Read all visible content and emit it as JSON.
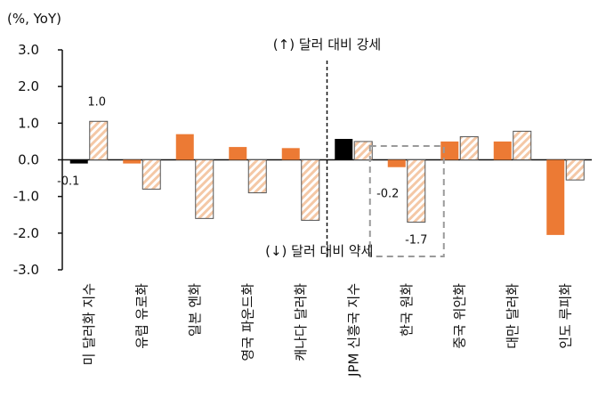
{
  "chart_data": {
    "type": "bar",
    "unit_label": "(%, YoY)",
    "ylim": [
      -3.0,
      3.0
    ],
    "yticks": [
      3.0,
      2.0,
      1.0,
      0.0,
      -1.0,
      -2.0,
      -3.0
    ],
    "ytick_labels": [
      "3.0",
      "2.0",
      "1.0",
      "0.0",
      "-1.0",
      "-2.0",
      "-3.0"
    ],
    "grid": false,
    "legend": "none",
    "categories": [
      "미 달러화 지수",
      "유럽 유로화",
      "일본 엔화",
      "영국 파운드화",
      "캐나다 달러화",
      "JPM 신흥국 지수",
      "한국 원화",
      "중국 위안화",
      "대만 달러화",
      "인도 루피화"
    ],
    "series": [
      {
        "values": [
          -0.1,
          -0.1,
          0.7,
          0.35,
          0.32,
          0.57,
          -0.2,
          0.5,
          0.5,
          -2.05
        ]
      },
      {
        "values": [
          1.05,
          -0.8,
          -1.6,
          -0.9,
          -1.65,
          0.5,
          -1.7,
          0.63,
          0.78,
          -0.55
        ]
      }
    ],
    "data_labels": [
      {
        "category": 0,
        "series": 0,
        "text": "-0.1"
      },
      {
        "category": 0,
        "series": 1,
        "text": "1.0"
      },
      {
        "category": 6,
        "series": 0,
        "text": "-0.2"
      },
      {
        "category": 6,
        "series": 1,
        "text": "-1.7"
      }
    ],
    "annotations": {
      "up": "(↑) 달러 대비 강세",
      "down": "(↓) 달러 대비 약세"
    },
    "colors": {
      "dollar_index": "#000000",
      "jpm_em": "#000000",
      "orange": "#ec7a34",
      "hatch_stripe": "#f4c8a6",
      "outline": "#555555",
      "highlight_box": "#9a9a9a"
    }
  }
}
